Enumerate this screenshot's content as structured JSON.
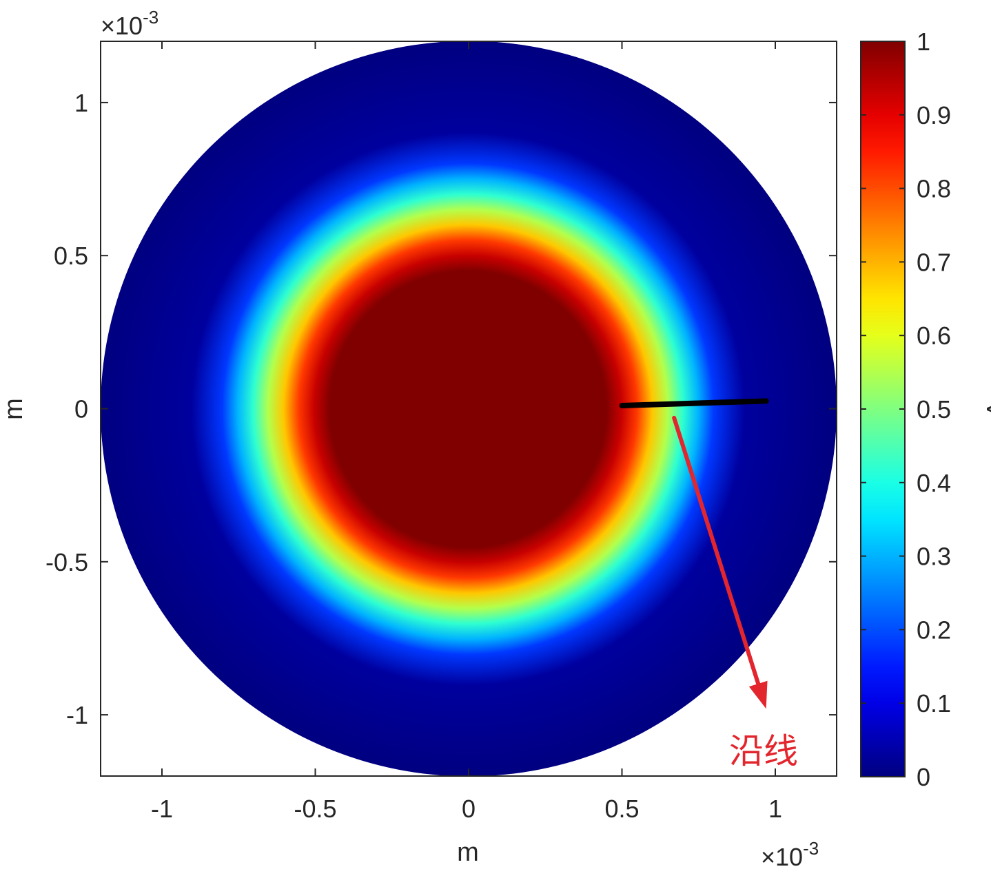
{
  "chart_data": {
    "type": "heatmap",
    "title": "",
    "xlabel": "m",
    "ylabel": "m",
    "x_exponent_label": "×10",
    "x_exponent_power": "-3",
    "y_exponent_label": "×10",
    "y_exponent_power": "-3",
    "xlim": [
      -1.2,
      1.2
    ],
    "ylim": [
      -1.2,
      1.2
    ],
    "xticks": [
      -1,
      -0.5,
      0,
      0.5,
      1
    ],
    "xtick_labels": [
      "-1",
      "-0.5",
      "0",
      "0.5",
      "1"
    ],
    "yticks": [
      1,
      0.5,
      0,
      -0.5,
      -1
    ],
    "ytick_labels": [
      "1",
      "0.5",
      "0",
      "-0.5",
      "-1"
    ],
    "domain": {
      "shape": "disk",
      "center": [
        0,
        0
      ],
      "radius": 1.2
    },
    "field_profile": {
      "description": "radial voltage field, ~1 inside r<0.45, decaying to 0 near r≈0.9",
      "radius": [
        0.0,
        0.45,
        0.5,
        0.55,
        0.6,
        0.65,
        0.7,
        0.75,
        0.8,
        0.9,
        1.2
      ],
      "value": [
        1.0,
        1.0,
        0.93,
        0.82,
        0.68,
        0.55,
        0.42,
        0.3,
        0.18,
        0.03,
        0.0
      ]
    },
    "colorbar": {
      "label": "V",
      "colormap": "jet",
      "range": [
        0,
        1
      ],
      "ticks": [
        1,
        0.9,
        0.8,
        0.7,
        0.6,
        0.5,
        0.4,
        0.3,
        0.2,
        0.1,
        0
      ],
      "tick_labels": [
        "1",
        "0.9",
        "0.8",
        "0.7",
        "0.6",
        "0.5",
        "0.4",
        "0.3",
        "0.2",
        "0.1",
        "0"
      ]
    },
    "cutline": {
      "from": [
        0.5,
        0.01
      ],
      "to": [
        0.97,
        0.025
      ],
      "color": "#000000"
    },
    "annotation": {
      "text": "沿线",
      "color": "#e3262d",
      "arrow_from": [
        0.67,
        -0.03
      ],
      "arrow_to": [
        0.97,
        -0.98
      ]
    }
  }
}
